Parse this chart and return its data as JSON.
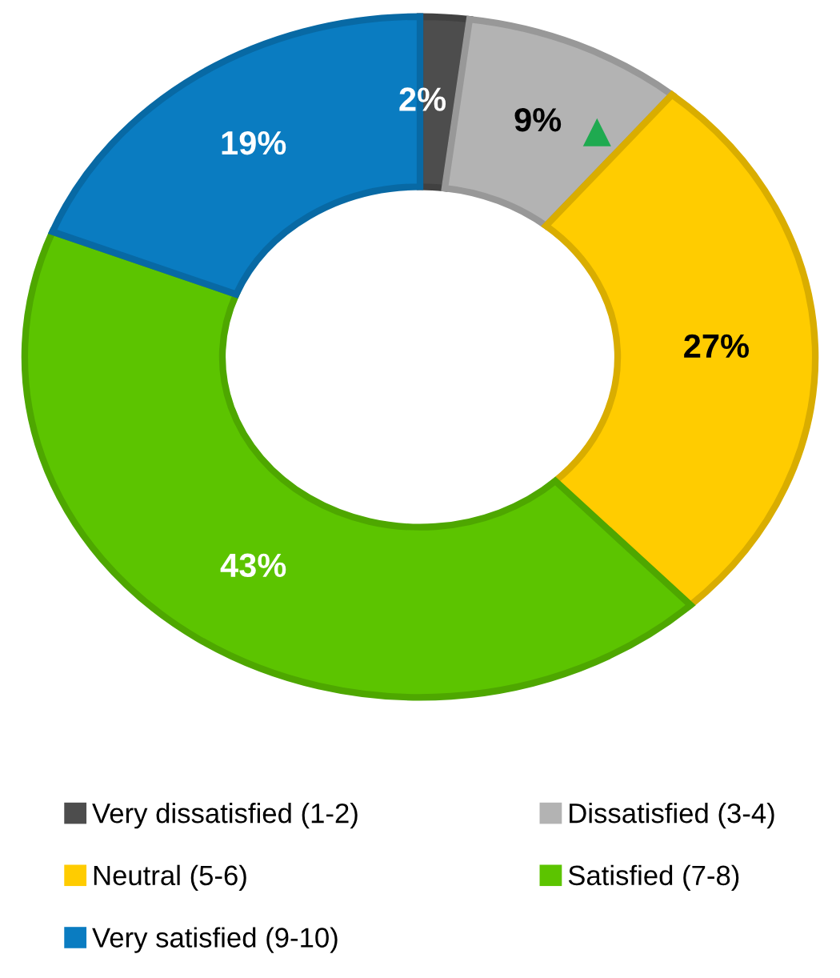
{
  "chart_data": {
    "type": "donut",
    "categories": [
      "Very dissatisfied (1-2)",
      "Dissatisfied (3-4)",
      "Neutral (5-6)",
      "Satisfied (7-8)",
      "Very satisfied (9-10)"
    ],
    "values": [
      2,
      9,
      27,
      43,
      19
    ],
    "colors": [
      "#4d4d4d",
      "#b3b3b3",
      "#ffcc00",
      "#5cc400",
      "#0a7cc1"
    ],
    "value_labels": [
      "2%",
      "9%",
      "27%",
      "43%",
      "19%"
    ],
    "legend": "bottom"
  }
}
